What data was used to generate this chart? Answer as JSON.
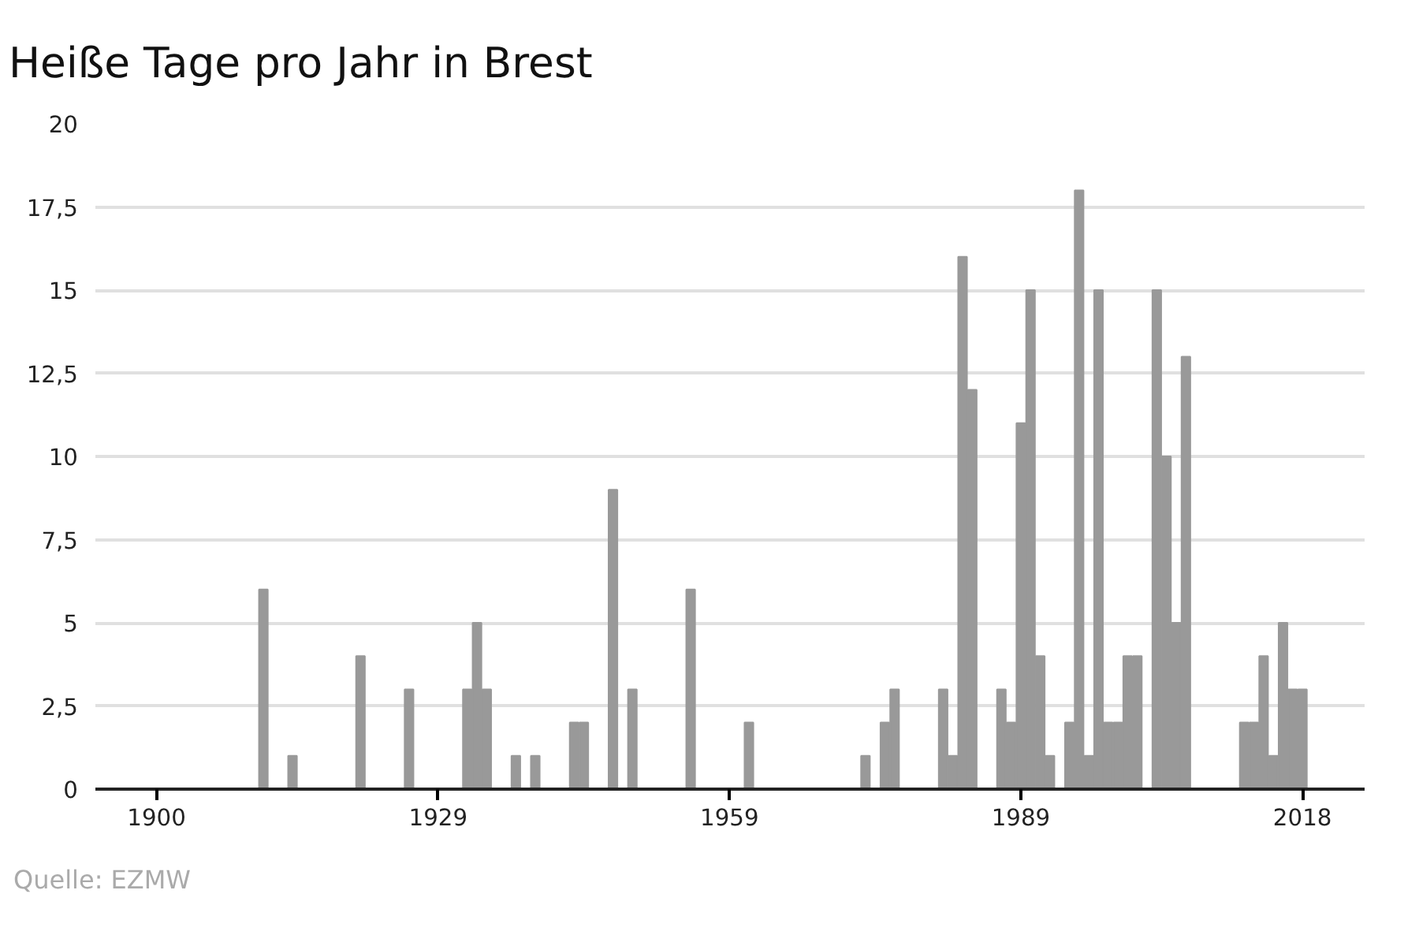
{
  "chart_data": {
    "type": "bar",
    "title": "Heiße Tage pro Jahr in Brest",
    "x": [
      1911,
      1914,
      1921,
      1926,
      1932,
      1933,
      1934,
      1937,
      1939,
      1943,
      1944,
      1947,
      1949,
      1955,
      1961,
      1973,
      1975,
      1976,
      1981,
      1982,
      1983,
      1984,
      1987,
      1988,
      1989,
      1990,
      1991,
      1992,
      1994,
      1995,
      1996,
      1997,
      1998,
      1999,
      2000,
      2001,
      2003,
      2004,
      2005,
      2006,
      2012,
      2013,
      2014,
      2015,
      2016,
      2017,
      2018
    ],
    "values": [
      6,
      1,
      4,
      3,
      3,
      5,
      3,
      1,
      1,
      2,
      2,
      9,
      3,
      6,
      2,
      1,
      2,
      3,
      3,
      1,
      16,
      12,
      3,
      2,
      11,
      15,
      4,
      1,
      2,
      18,
      1,
      15,
      2,
      2,
      4,
      4,
      15,
      10,
      5,
      13,
      2,
      2,
      4,
      1,
      5,
      3,
      3
    ],
    "color": "#999999",
    "xlim": [
      1893.7,
      2024.4
    ],
    "xticks": [
      1900,
      1929,
      1959,
      1989,
      2018
    ],
    "ylim": [
      0,
      20
    ],
    "yticks": [
      0,
      {
        "value": 2.5,
        "label": "2,5"
      },
      5,
      {
        "value": 7.5,
        "label": "7,5"
      },
      10,
      {
        "value": 12.5,
        "label": "12,5"
      },
      15,
      {
        "value": 17.5,
        "label": "17,5"
      },
      20
    ],
    "grid": "y",
    "annotations": [
      "Quelle: EZMW"
    ]
  }
}
